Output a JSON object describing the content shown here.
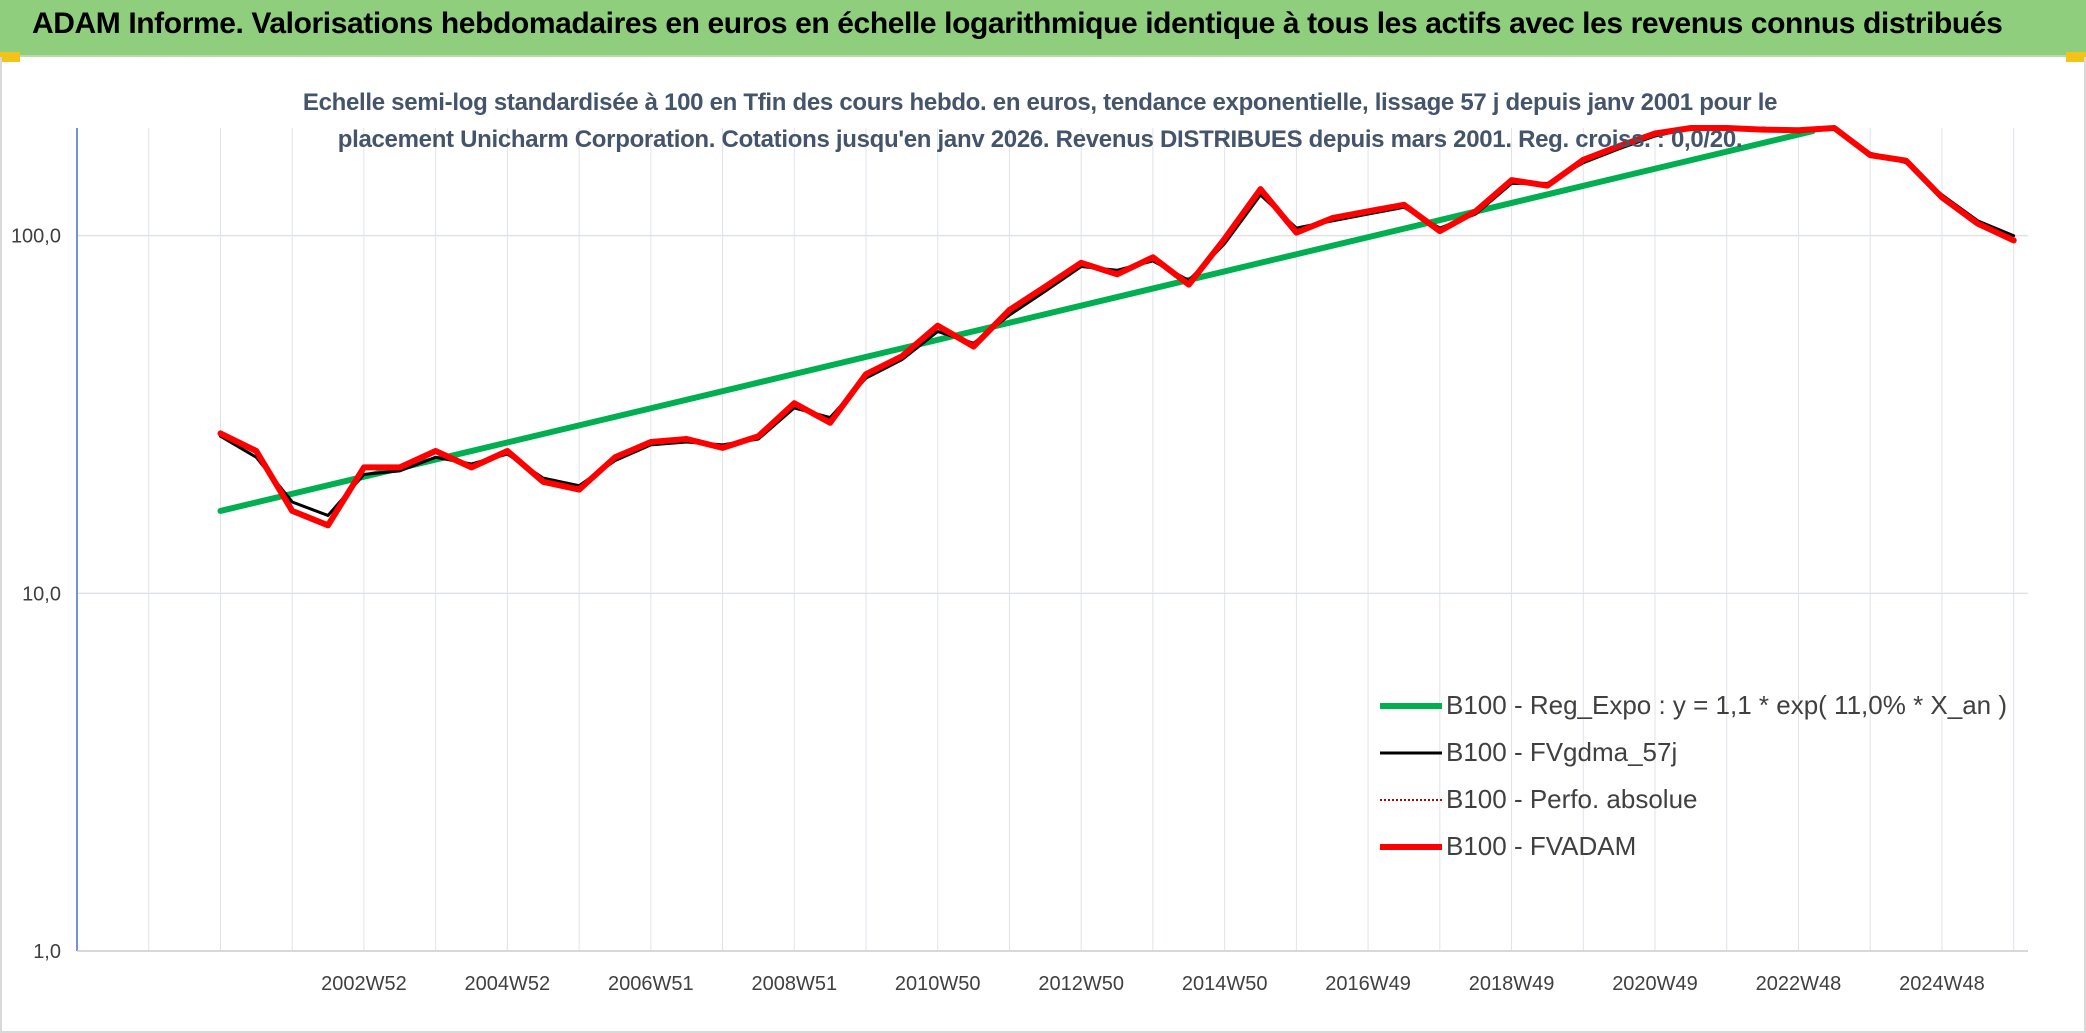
{
  "header": {
    "title": "ADAM Informe. Valorisations hebdomadaires en euros en échelle logarithmique identique à tous les actifs avec les revenus connus distribués"
  },
  "chart_data": {
    "type": "line",
    "subtitle_line1": "Echelle semi-log standardisée à 100 en Tfin des cours hebdo. en euros, tendance exponentielle, lissage 57 j depuis janv 2001 pour le",
    "subtitle_line2": "placement Unicharm Corporation. Cotations jusqu'en janv 2026. Revenus DISTRIBUES depuis mars 2001. Reg. croiss. : 0,0/20.",
    "y_scale": "log",
    "ylim": [
      1,
      200
    ],
    "xlim": [
      1999.0,
      2026.2
    ],
    "grid": true,
    "legend_position": "bottom-right",
    "y_ticks": [
      {
        "value": 1,
        "label": "1,0"
      },
      {
        "value": 10,
        "label": "10,0"
      },
      {
        "value": 100,
        "label": "100,0"
      }
    ],
    "x_ticks": [
      {
        "value": 2003.0,
        "label": "2002W52"
      },
      {
        "value": 2005.0,
        "label": "2004W52"
      },
      {
        "value": 2007.0,
        "label": "2006W51"
      },
      {
        "value": 2009.0,
        "label": "2008W51"
      },
      {
        "value": 2011.0,
        "label": "2010W50"
      },
      {
        "value": 2013.0,
        "label": "2012W50"
      },
      {
        "value": 2015.0,
        "label": "2014W50"
      },
      {
        "value": 2017.0,
        "label": "2016W49"
      },
      {
        "value": 2019.0,
        "label": "2018W49"
      },
      {
        "value": 2021.0,
        "label": "2020W49"
      },
      {
        "value": 2023.0,
        "label": "2022W48"
      },
      {
        "value": 2025.0,
        "label": "2024W48"
      }
    ],
    "series": [
      {
        "name": "B100 - Reg_Expo : y = 1,1 * exp( 11,0% *  X_an )",
        "color": "#00b050",
        "style": "solid-thick",
        "x": [
          2001.0,
          2023.2
        ],
        "y": [
          17.0,
          196.0
        ]
      },
      {
        "name": "B100 - FVgdma_57j",
        "color": "#000000",
        "style": "solid-thin",
        "x": [
          2001.0,
          2001.5,
          2002.0,
          2002.5,
          2003.0,
          2003.5,
          2004.0,
          2004.5,
          2005.0,
          2005.5,
          2006.0,
          2006.5,
          2007.0,
          2007.5,
          2008.0,
          2008.5,
          2009.0,
          2009.5,
          2010.0,
          2010.5,
          2011.0,
          2011.5,
          2012.0,
          2012.5,
          2013.0,
          2013.5,
          2014.0,
          2014.5,
          2015.0,
          2015.5,
          2016.0,
          2016.5,
          2017.0,
          2017.5,
          2018.0,
          2018.5,
          2019.0,
          2019.5,
          2020.0,
          2020.5,
          2021.0,
          2021.5,
          2022.0,
          2022.5,
          2023.0,
          2023.5,
          2024.0,
          2024.5,
          2025.0,
          2025.5,
          2026.0
        ],
        "y": [
          27.5,
          24.0,
          18.0,
          16.5,
          21.5,
          22.0,
          24.0,
          23.0,
          24.5,
          21.0,
          20.0,
          23.5,
          26.0,
          26.5,
          26.0,
          27.0,
          33.0,
          31.0,
          40.0,
          45.0,
          54.0,
          50.0,
          60.0,
          70.0,
          82.0,
          80.0,
          85.0,
          75.0,
          95.0,
          130.0,
          105.0,
          110.0,
          115.0,
          120.0,
          105.0,
          115.0,
          140.0,
          140.0,
          160.0,
          175.0,
          190.0,
          200.0,
          210.0,
          200.0,
          195.0,
          200.0,
          170.0,
          160.0,
          130.0,
          110.0,
          100.0
        ]
      },
      {
        "name": "B100 - Perfo. absolue",
        "color": "#c00000",
        "style": "dotted",
        "x": [
          2001.0,
          2001.5,
          2002.0,
          2002.5,
          2003.0,
          2003.5,
          2004.0,
          2004.5,
          2005.0,
          2005.5,
          2006.0,
          2006.5,
          2007.0,
          2007.5,
          2008.0,
          2008.5,
          2009.0,
          2009.5,
          2010.0,
          2010.5,
          2011.0,
          2011.5,
          2012.0,
          2012.5,
          2013.0,
          2013.5,
          2014.0,
          2014.5,
          2015.0,
          2015.5,
          2016.0,
          2016.5,
          2017.0,
          2017.5,
          2018.0,
          2018.5,
          2019.0,
          2019.5,
          2020.0,
          2020.5,
          2021.0,
          2021.5,
          2022.0,
          2022.5,
          2023.0,
          2023.5,
          2024.0,
          2024.5,
          2025.0,
          2025.5,
          2026.0
        ],
        "y": [
          28.0,
          25.0,
          17.0,
          15.5,
          22.5,
          22.5,
          25.0,
          22.5,
          25.0,
          20.5,
          19.5,
          24.0,
          26.5,
          27.0,
          25.5,
          27.5,
          34.0,
          30.0,
          41.0,
          46.0,
          56.0,
          49.0,
          62.0,
          72.0,
          84.0,
          78.0,
          87.0,
          73.0,
          98.0,
          135.0,
          102.0,
          112.0,
          117.0,
          122.0,
          103.0,
          117.0,
          143.0,
          138.0,
          163.0,
          178.0,
          193.0,
          203.0,
          213.0,
          198.0,
          197.0,
          202.0,
          168.0,
          162.0,
          128.0,
          108.0,
          97.0
        ]
      },
      {
        "name": "B100 - FVADAM",
        "color": "#ff0000",
        "style": "solid-thick",
        "x": [
          2001.0,
          2001.5,
          2002.0,
          2002.5,
          2003.0,
          2003.5,
          2004.0,
          2004.5,
          2005.0,
          2005.5,
          2006.0,
          2006.5,
          2007.0,
          2007.5,
          2008.0,
          2008.5,
          2009.0,
          2009.5,
          2010.0,
          2010.5,
          2011.0,
          2011.5,
          2012.0,
          2012.5,
          2013.0,
          2013.5,
          2014.0,
          2014.5,
          2015.0,
          2015.5,
          2016.0,
          2016.5,
          2017.0,
          2017.5,
          2018.0,
          2018.5,
          2019.0,
          2019.5,
          2020.0,
          2020.5,
          2021.0,
          2021.5,
          2022.0,
          2022.5,
          2023.0,
          2023.5,
          2024.0,
          2024.5,
          2025.0,
          2025.5,
          2026.0
        ],
        "y": [
          28.0,
          25.0,
          17.0,
          15.5,
          22.5,
          22.5,
          25.0,
          22.5,
          25.0,
          20.5,
          19.5,
          24.0,
          26.5,
          27.0,
          25.5,
          27.5,
          34.0,
          30.0,
          41.0,
          46.0,
          56.0,
          49.0,
          62.0,
          72.0,
          84.0,
          78.0,
          87.0,
          73.0,
          98.0,
          135.0,
          102.0,
          112.0,
          117.0,
          122.0,
          103.0,
          117.0,
          143.0,
          138.0,
          163.0,
          178.0,
          193.0,
          203.0,
          213.0,
          198.0,
          197.0,
          202.0,
          168.0,
          162.0,
          128.0,
          108.0,
          97.0
        ]
      }
    ]
  }
}
